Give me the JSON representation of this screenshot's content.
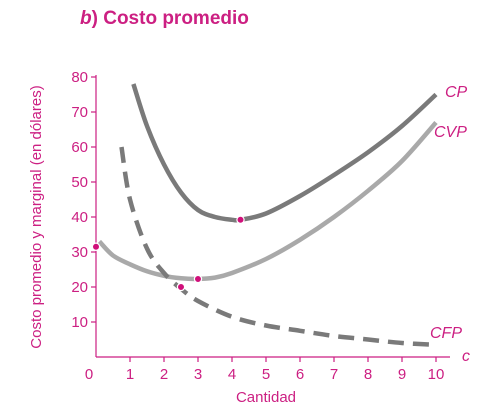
{
  "title": {
    "part_label": "b",
    "paren": ")",
    "text": "Costo promedio"
  },
  "colors": {
    "accent": "#cc1f82",
    "axis": "#cc1f82",
    "dark_gray": "#7a7a7a",
    "light_gray": "#a9a9a9",
    "points": "#d0107a"
  },
  "chart_data": {
    "type": "line",
    "xlabel": "Cantidad",
    "ylabel": "Costo promedio y marginal (en dólares)",
    "x_axis_end_label": "c",
    "xlim": [
      0,
      10
    ],
    "ylim": [
      0,
      80
    ],
    "x_ticks": [
      0,
      1,
      2,
      3,
      4,
      5,
      6,
      7,
      8,
      9,
      10
    ],
    "y_ticks": [
      10,
      20,
      30,
      40,
      50,
      60,
      70,
      80
    ],
    "grid": false,
    "series": [
      {
        "name": "CP",
        "style": "solid-dark",
        "x": [
          1.1,
          1.5,
          2.0,
          2.5,
          3.0,
          3.5,
          4.0,
          4.25,
          5.0,
          6.0,
          7.0,
          8.0,
          9.0,
          10.0
        ],
        "y": [
          78,
          66,
          55,
          47,
          42,
          40,
          39.2,
          39.2,
          41,
          46,
          52,
          58.5,
          66,
          75
        ]
      },
      {
        "name": "CVP",
        "style": "solid-light",
        "x": [
          0.1,
          0.5,
          1.0,
          1.5,
          2.0,
          2.5,
          3.0,
          3.5,
          4.0,
          5.0,
          6.0,
          7.0,
          8.0,
          9.0,
          10.0
        ],
        "y": [
          33,
          29,
          26.5,
          24.5,
          23.2,
          22.5,
          22.3,
          22.7,
          24,
          28,
          33.5,
          40,
          47.5,
          56,
          67
        ]
      },
      {
        "name": "CFP",
        "style": "dashed-dark",
        "x": [
          0.75,
          1.0,
          1.5,
          2.0,
          2.5,
          3.0,
          4.0,
          5.0,
          6.0,
          7.0,
          8.0,
          9.0,
          10.0
        ],
        "y": [
          60,
          45,
          31,
          24,
          19.5,
          16,
          11.5,
          9,
          7.5,
          6,
          5,
          4,
          3.5
        ]
      }
    ],
    "points": [
      {
        "x": 4.25,
        "y": 39.2
      },
      {
        "x": 3.0,
        "y": 22.3
      },
      {
        "x": 2.5,
        "y": 20
      },
      {
        "x": 0.0,
        "y": 31.5
      }
    ]
  }
}
